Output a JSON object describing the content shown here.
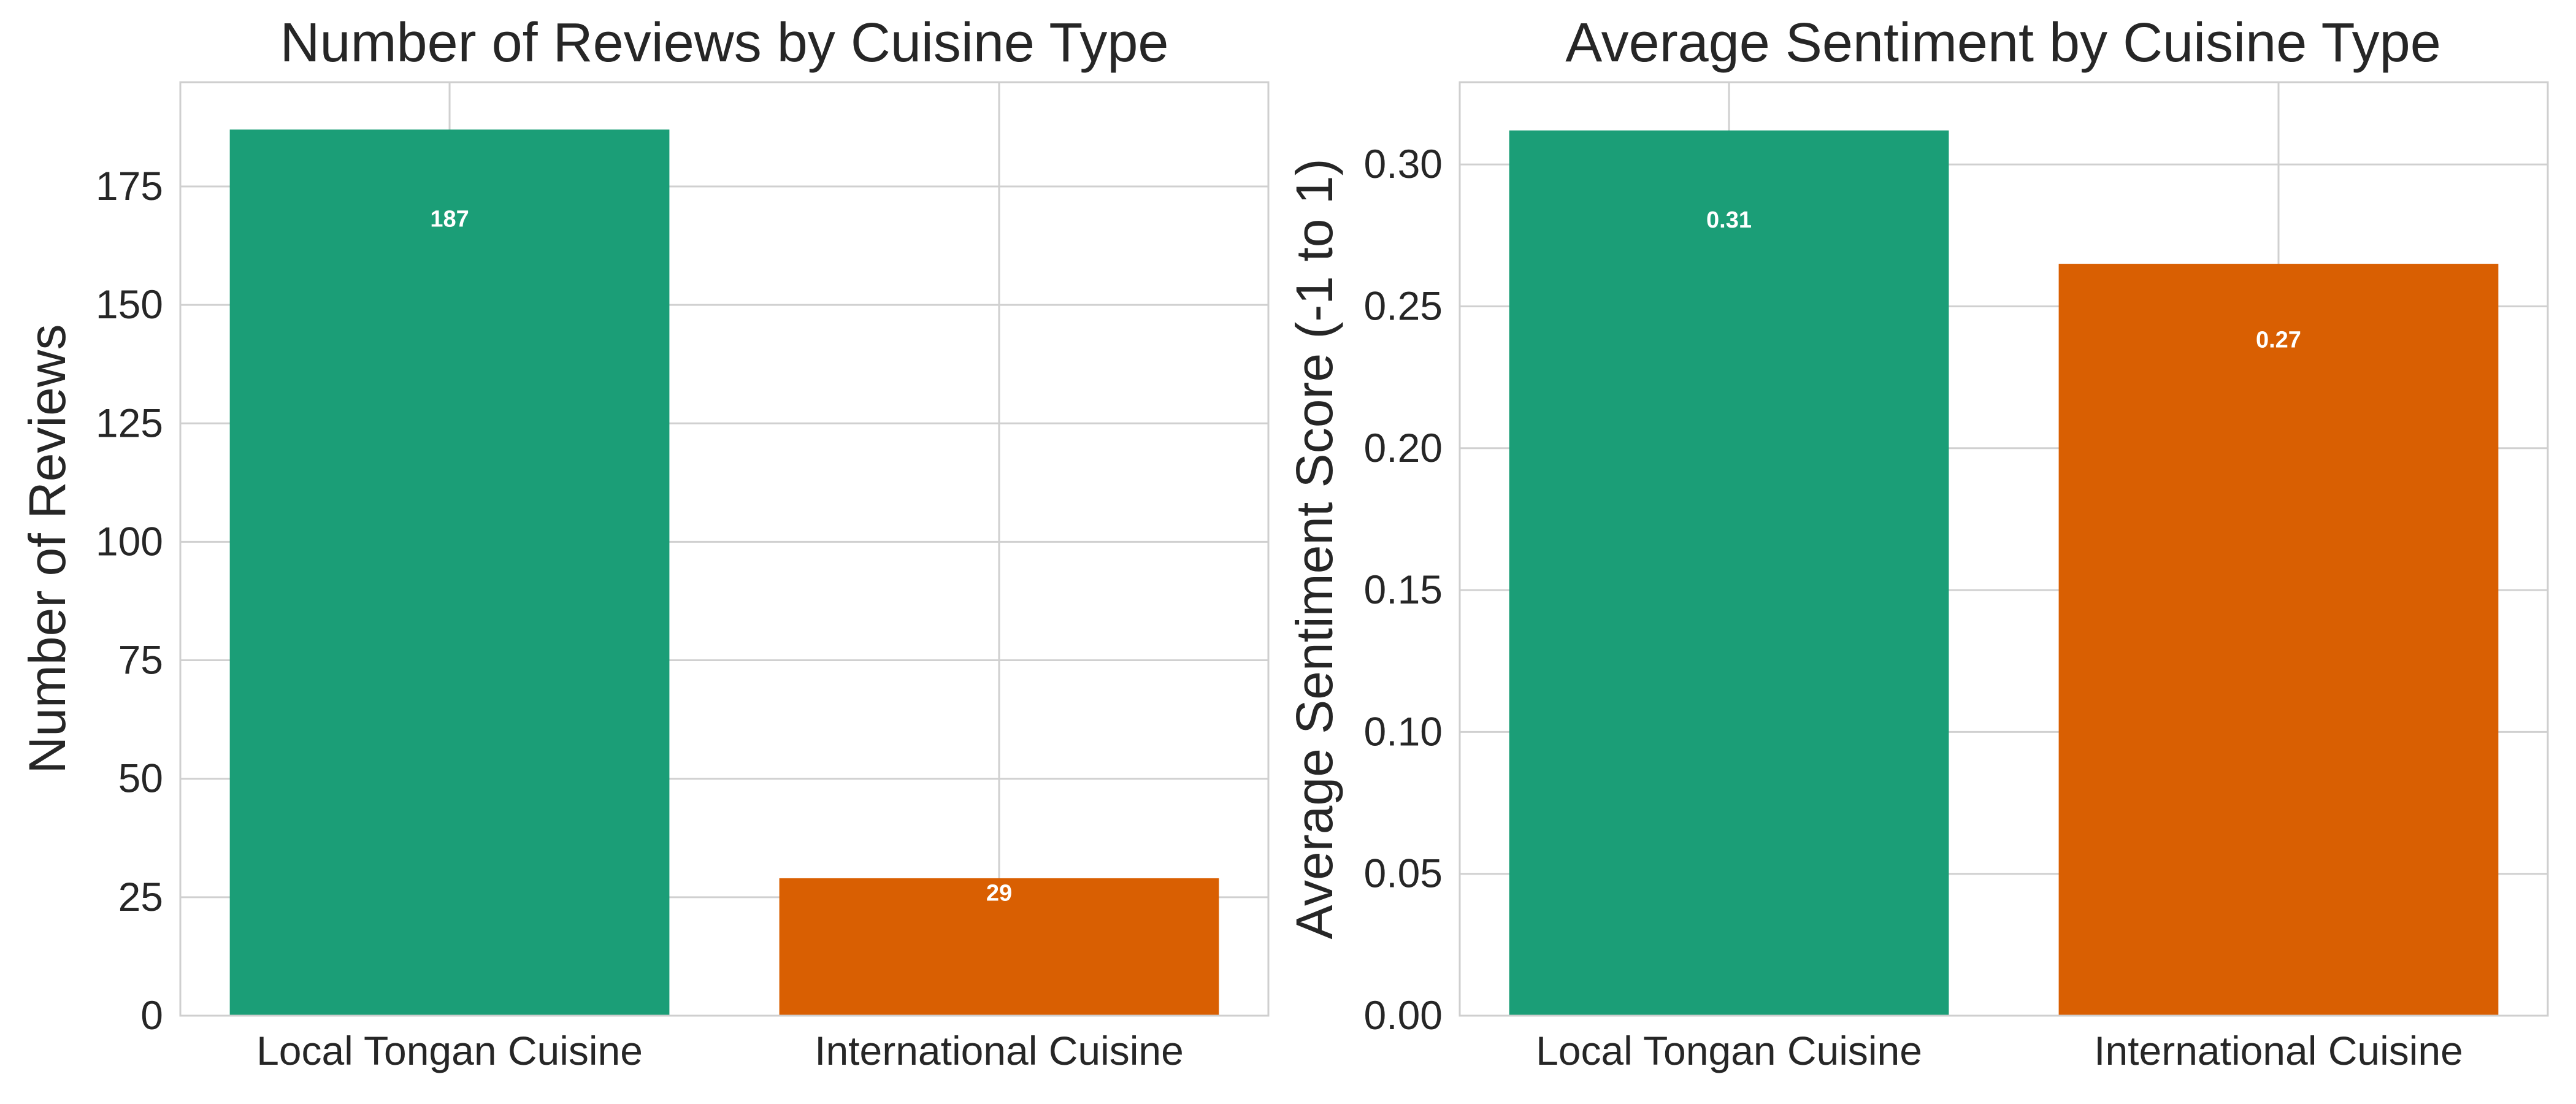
{
  "chart_data": [
    {
      "type": "bar",
      "title": "Number of Reviews by Cuisine Type",
      "xlabel": "",
      "ylabel": "Number of Reviews",
      "categories": [
        "Local Tongan Cuisine",
        "International Cuisine"
      ],
      "values": [
        187,
        29
      ],
      "value_labels": [
        "187",
        "29"
      ],
      "colors": [
        "#1b9e77",
        "#d95f02"
      ],
      "ylim": [
        0,
        197
      ],
      "yticks": [
        0,
        25,
        50,
        75,
        100,
        125,
        150,
        175
      ],
      "ytick_labels": [
        "0",
        "25",
        "50",
        "75",
        "100",
        "125",
        "150",
        "175"
      ],
      "grid": true,
      "legend": "none"
    },
    {
      "type": "bar",
      "title": "Average Sentiment by Cuisine Type",
      "xlabel": "",
      "ylabel": "Average Sentiment Score (-1 to 1)",
      "categories": [
        "Local Tongan Cuisine",
        "International Cuisine"
      ],
      "values": [
        0.312,
        0.265
      ],
      "value_labels": [
        "0.31",
        "0.27"
      ],
      "colors": [
        "#1b9e77",
        "#d95f02"
      ],
      "ylim": [
        0,
        0.329
      ],
      "yticks": [
        0.0,
        0.05,
        0.1,
        0.15,
        0.2,
        0.25,
        0.3
      ],
      "ytick_labels": [
        "0.00",
        "0.05",
        "0.10",
        "0.15",
        "0.20",
        "0.25",
        "0.30"
      ],
      "grid": true,
      "legend": "none"
    }
  ]
}
